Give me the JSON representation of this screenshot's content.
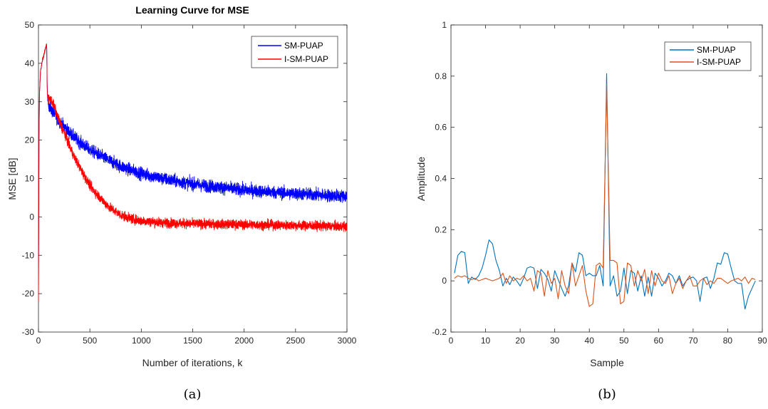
{
  "chart_data": [
    {
      "type": "line",
      "title": "Learning Curve for MSE",
      "xlabel": "Number of iterations, k",
      "ylabel": "MSE [dB]",
      "xlim": [
        0,
        3000
      ],
      "ylim": [
        -30,
        50
      ],
      "x_ticks": [
        "0",
        "500",
        "1000",
        "1500",
        "2000",
        "2500",
        "3000"
      ],
      "y_ticks": [
        "-30",
        "-20",
        "-10",
        "0",
        "10",
        "20",
        "30",
        "40",
        "50"
      ],
      "grid": false,
      "legend_position": "top-right",
      "caption": "(a)",
      "series": [
        {
          "name": "SM-PUAP",
          "color": "#0000ff",
          "x": [
            0,
            5,
            10,
            20,
            40,
            60,
            80,
            85,
            90,
            120,
            150,
            200,
            300,
            400,
            500,
            600,
            700,
            800,
            900,
            1000,
            1200,
            1400,
            1600,
            1800,
            2000,
            2200,
            2400,
            2600,
            2800,
            3000
          ],
          "y": [
            -20,
            20,
            32,
            38,
            41,
            43,
            45,
            34,
            30,
            28,
            27,
            25,
            22,
            19.5,
            17.5,
            16,
            14.5,
            13.2,
            12.2,
            11.3,
            10,
            9,
            8.2,
            7.6,
            7,
            6.6,
            6.2,
            5.9,
            5.6,
            5.4
          ],
          "noise": 2.0
        },
        {
          "name": "I-SM-PUAP",
          "color": "#ff0000",
          "x": [
            0,
            5,
            10,
            20,
            40,
            60,
            80,
            85,
            90,
            120,
            150,
            200,
            250,
            300,
            350,
            400,
            450,
            500,
            550,
            600,
            650,
            700,
            800,
            900,
            1000,
            1200,
            1500,
            2000,
            2500,
            3000
          ],
          "y": [
            -22,
            20,
            32,
            38,
            41,
            43,
            45,
            33,
            31,
            30.5,
            29,
            25,
            22,
            18.5,
            15.5,
            13,
            10.5,
            8.2,
            6.5,
            5,
            3.5,
            2.3,
            0.5,
            -0.5,
            -1,
            -1.5,
            -1.8,
            -2,
            -2.2,
            -2.5
          ],
          "noise": 1.5
        }
      ]
    },
    {
      "type": "line",
      "title": "",
      "xlabel": "Sample",
      "ylabel": "Amplitude",
      "xlim": [
        0,
        90
      ],
      "ylim": [
        -0.2,
        1
      ],
      "x_ticks": [
        "0",
        "10",
        "20",
        "30",
        "40",
        "50",
        "60",
        "70",
        "80",
        "90"
      ],
      "y_ticks": [
        "-0.2",
        "0",
        "0.2",
        "0.4",
        "0.6",
        "0.8",
        "1"
      ],
      "grid": false,
      "legend_position": "top-right",
      "caption": "(b)",
      "series": [
        {
          "name": "SM-PUAP",
          "color": "#0072bd",
          "x": [
            1,
            2,
            3,
            4,
            5,
            6,
            7,
            8,
            9,
            10,
            11,
            12,
            13,
            14,
            15,
            16,
            17,
            18,
            19,
            20,
            21,
            22,
            23,
            24,
            25,
            26,
            27,
            28,
            29,
            30,
            31,
            32,
            33,
            34,
            35,
            36,
            37,
            38,
            39,
            40,
            41,
            42,
            43,
            44,
            45,
            46,
            47,
            48,
            49,
            50,
            51,
            52,
            53,
            54,
            55,
            56,
            57,
            58,
            59,
            60,
            61,
            62,
            63,
            64,
            65,
            66,
            67,
            68,
            69,
            70,
            71,
            72,
            73,
            74,
            75,
            76,
            77,
            78,
            79,
            80,
            81,
            82,
            83,
            84,
            85,
            86,
            87,
            88
          ],
          "y": [
            0.03,
            0.1,
            0.115,
            0.11,
            -0.01,
            0.015,
            0.005,
            0.02,
            0.05,
            0.1,
            0.16,
            0.145,
            0.08,
            0.04,
            -0.02,
            0.01,
            -0.015,
            0.015,
            0.0,
            -0.02,
            0.01,
            0.05,
            0.055,
            0.05,
            -0.03,
            0.045,
            0.03,
            0.005,
            -0.04,
            0.04,
            0.005,
            -0.03,
            -0.06,
            -0.02,
            0.07,
            0.035,
            0.11,
            0.1,
            0.02,
            0.03,
            0.02,
            0.02,
            0.06,
            -0.02,
            0.81,
            -0.02,
            0.02,
            -0.06,
            -0.04,
            0.05,
            -0.05,
            0.04,
            0.03,
            -0.04,
            0.02,
            -0.06,
            0.015,
            -0.06,
            0.03,
            0.01,
            -0.02,
            0.0,
            0.03,
            0.02,
            -0.01,
            0.02,
            -0.02,
            0.0,
            0.01,
            0.015,
            0.0,
            -0.08,
            0.01,
            0.015,
            -0.03,
            0.01,
            0.07,
            0.065,
            0.11,
            0.105,
            0.05,
            0.0,
            -0.01,
            -0.01,
            -0.11,
            -0.06,
            -0.03,
            0.0
          ],
          "noise": 0
        },
        {
          "name": "I-SM-PUAP",
          "color": "#d95319",
          "x": [
            1,
            2,
            3,
            4,
            5,
            6,
            7,
            8,
            9,
            10,
            11,
            12,
            13,
            14,
            15,
            16,
            17,
            18,
            19,
            20,
            21,
            22,
            23,
            24,
            25,
            26,
            27,
            28,
            29,
            30,
            31,
            32,
            33,
            34,
            35,
            36,
            37,
            38,
            39,
            40,
            41,
            42,
            43,
            44,
            45,
            46,
            47,
            48,
            49,
            50,
            51,
            52,
            53,
            54,
            55,
            56,
            57,
            58,
            59,
            60,
            61,
            62,
            63,
            64,
            65,
            66,
            67,
            68,
            69,
            70,
            71,
            72,
            73,
            74,
            75,
            76,
            77,
            78,
            79,
            80,
            81,
            82,
            83,
            84,
            85,
            86,
            87,
            88
          ],
          "y": [
            0.01,
            0.02,
            0.015,
            0.02,
            0.01,
            0.005,
            0.01,
            0.0,
            0.005,
            0.01,
            0.005,
            0.0,
            0.005,
            0.01,
            0.03,
            -0.01,
            0.02,
            0.0,
            0.01,
            0.005,
            0.02,
            0.0,
            0.01,
            -0.04,
            0.04,
            0.03,
            -0.06,
            0.04,
            -0.01,
            0.01,
            -0.07,
            0.04,
            -0.02,
            -0.05,
            0.07,
            -0.02,
            0.02,
            0.06,
            -0.04,
            -0.1,
            -0.09,
            0.06,
            0.07,
            0.05,
            0.77,
            0.08,
            0.08,
            0.07,
            -0.09,
            -0.08,
            0.07,
            0.06,
            -0.02,
            0.04,
            0.0,
            0.045,
            -0.05,
            0.04,
            -0.02,
            0.03,
            0.0,
            -0.01,
            0.02,
            -0.05,
            -0.01,
            0.01,
            -0.03,
            0.0,
            0.02,
            -0.02,
            -0.02,
            0.0,
            0.01,
            -0.015,
            0.0,
            -0.01,
            0.01,
            0.01,
            0.0,
            -0.01,
            0.0,
            0.005,
            0.01,
            0.0,
            0.015,
            -0.01,
            0.01,
            0.005
          ],
          "noise": 0
        }
      ]
    }
  ]
}
